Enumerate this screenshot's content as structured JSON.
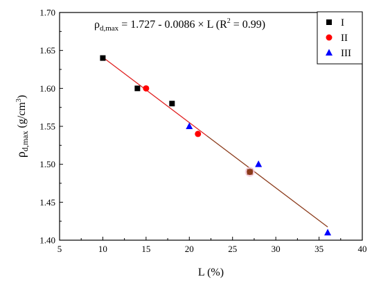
{
  "chart_data": {
    "type": "scatter",
    "xlabel": "L (%)",
    "ylabel": "ρd,max (g/cm3)",
    "xlim": [
      5,
      40
    ],
    "ylim": [
      1.4,
      1.7
    ],
    "x_ticks": [
      "5",
      "10",
      "15",
      "20",
      "25",
      "30",
      "35",
      "40"
    ],
    "y_ticks": [
      "1.40",
      "1.45",
      "1.50",
      "1.55",
      "1.60",
      "1.65",
      "1.70"
    ],
    "grid": false,
    "legend_position": "top-right",
    "equation": "ρd,max = 1.727 - 0.0086 × L (R2 = 0.99)",
    "fit_line": {
      "intercept": 1.727,
      "slope": -0.0086,
      "x_range": [
        10,
        36
      ]
    },
    "series": [
      {
        "name": "I",
        "marker": "square",
        "color": "#000000",
        "points": [
          {
            "x": 10,
            "y": 1.64
          },
          {
            "x": 14,
            "y": 1.6
          },
          {
            "x": 18,
            "y": 1.58
          },
          {
            "x": 27,
            "y": 1.49
          }
        ]
      },
      {
        "name": "II",
        "marker": "circle",
        "color": "#ff0000",
        "points": [
          {
            "x": 15,
            "y": 1.6
          },
          {
            "x": 21,
            "y": 1.54
          },
          {
            "x": 27,
            "y": 1.49
          }
        ]
      },
      {
        "name": "III",
        "marker": "triangle",
        "color": "#0000ff",
        "points": [
          {
            "x": 20,
            "y": 1.55
          },
          {
            "x": 28,
            "y": 1.5
          },
          {
            "x": 36,
            "y": 1.41
          }
        ]
      }
    ]
  }
}
